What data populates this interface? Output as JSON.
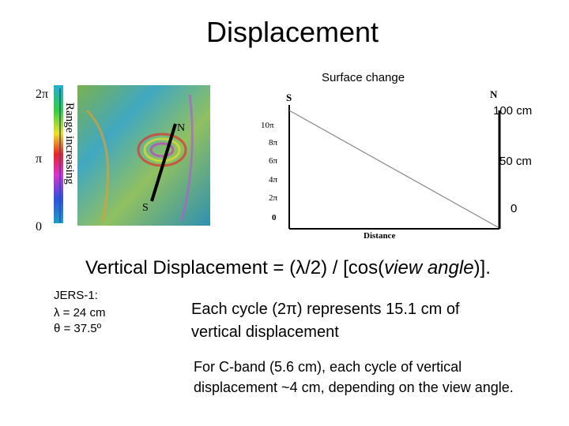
{
  "title": "Displacement",
  "surface_change": {
    "title": "Surface change",
    "labels": [
      "100 cm",
      "50 cm",
      "0"
    ]
  },
  "color_scale": {
    "label": "Range increasing",
    "ticks": [
      "2π",
      "π",
      "0"
    ]
  },
  "interferogram": {
    "labels": [
      "N",
      "S"
    ]
  },
  "profile_plot": {
    "left_label": "S",
    "right_label": "N",
    "x_label": "Distance",
    "y_ticks": [
      "10π",
      "8π",
      "6π",
      "4π",
      "2π",
      "0"
    ]
  },
  "formula": {
    "before": "Vertical Displacement = (λ/2) / [cos(",
    "italic": "view angle",
    "after": ")]."
  },
  "jers": {
    "title": "JERS-1:",
    "lines": [
      "λ = 24 cm",
      "θ = 37.5º"
    ]
  },
  "cycle_note": "Each cycle (2π) represents 15.1 cm of vertical displacement",
  "cband_note": "For C-band (5.6 cm), each cycle of vertical displacement ~4 cm, depending on the view angle."
}
